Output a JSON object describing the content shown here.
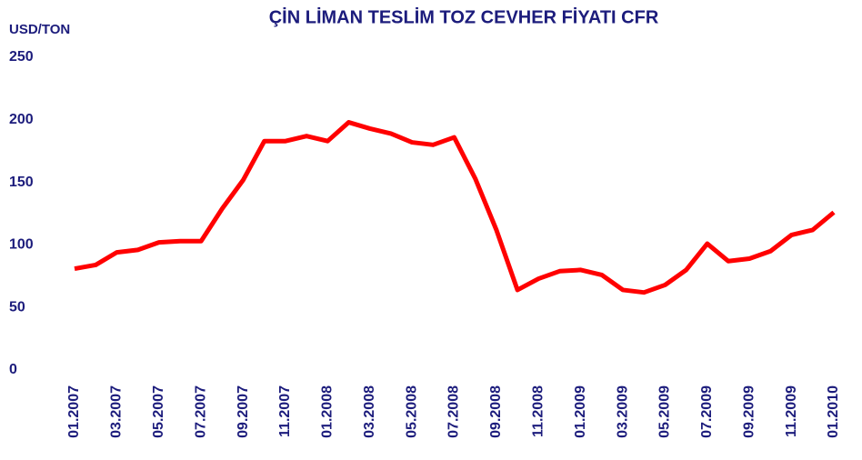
{
  "chart_data": {
    "type": "line",
    "title": "ÇİN LİMAN TESLİM TOZ CEVHER FİYATI CFR",
    "y_label": "USD/TON",
    "categories": [
      "01.2007",
      null,
      "03.2007",
      null,
      "05.2007",
      null,
      "07.2007",
      null,
      "09.2007",
      null,
      "11.2007",
      null,
      "01.2008",
      null,
      "03.2008",
      null,
      "05.2008",
      null,
      "07.2008",
      null,
      "09.2008",
      null,
      "11.2008",
      null,
      "01.2009",
      null,
      "03.2009",
      null,
      "05.2009",
      null,
      "07.2009",
      null,
      "09.2009",
      null,
      "11.2009",
      null,
      "01.2010"
    ],
    "series": [
      {
        "name": "CFR",
        "color": "#ff0000",
        "values": [
          81,
          84,
          94,
          96,
          102,
          103,
          103,
          129,
          152,
          183,
          183,
          187,
          183,
          198,
          193,
          189,
          182,
          180,
          186,
          153,
          112,
          64,
          73,
          79,
          80,
          76,
          64,
          62,
          68,
          80,
          101,
          87,
          89,
          95,
          108,
          112,
          126
        ]
      }
    ],
    "ylim": [
      0,
      250
    ],
    "yticks": [
      0,
      50,
      100,
      150,
      200,
      250
    ],
    "grid": false
  }
}
